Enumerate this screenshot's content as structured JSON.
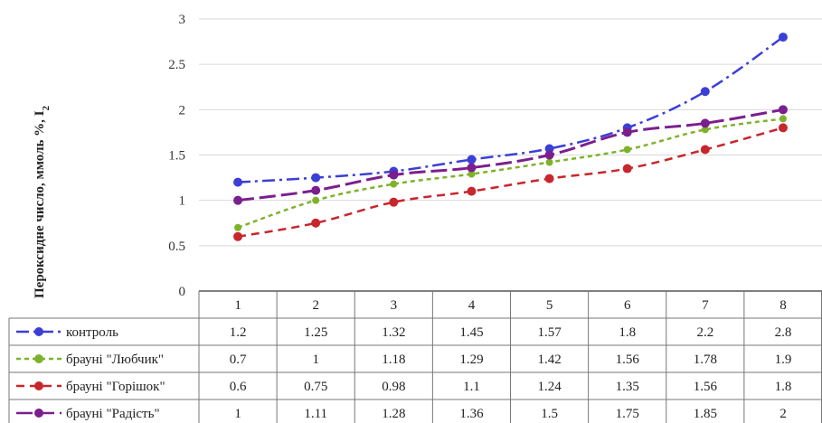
{
  "chart_data": {
    "type": "line",
    "ylabel": "Пероксидне число, ммоль %, I",
    "ylabel_sub": "2",
    "ylim": [
      0,
      3
    ],
    "yticks": [
      "0",
      "0.5",
      "1",
      "1.5",
      "2",
      "2.5",
      "3"
    ],
    "categories": [
      "1",
      "2",
      "3",
      "4",
      "5",
      "6",
      "7",
      "8"
    ],
    "grid": true,
    "legend": "data table below x-axis",
    "series": [
      {
        "name": "контроль",
        "color": "#3b3fd6",
        "dash": "dash-dot",
        "values": [
          1.2,
          1.25,
          1.32,
          1.45,
          1.57,
          1.8,
          2.2,
          2.8
        ],
        "labels": [
          "1.2",
          "1.25",
          "1.32",
          "1.45",
          "1.57",
          "1.8",
          "2.2",
          "2.8"
        ]
      },
      {
        "name": "брауні \"Любчик\"",
        "color": "#7fb22b",
        "dash": "dotted",
        "values": [
          0.7,
          1,
          1.18,
          1.29,
          1.42,
          1.56,
          1.78,
          1.9
        ],
        "labels": [
          "0.7",
          "1",
          "1.18",
          "1.29",
          "1.42",
          "1.56",
          "1.78",
          "1.9"
        ]
      },
      {
        "name": "брауні \"Горішок\"",
        "color": "#c8262c",
        "dash": "dashed",
        "values": [
          0.6,
          0.75,
          0.98,
          1.1,
          1.24,
          1.35,
          1.56,
          1.8
        ],
        "labels": [
          "0.6",
          "0.75",
          "0.98",
          "1.1",
          "1.24",
          "1.35",
          "1.56",
          "1.8"
        ]
      },
      {
        "name": "брауні \"Радість\"",
        "color": "#7b1f8e",
        "dash": "long-dash",
        "values": [
          1,
          1.11,
          1.28,
          1.36,
          1.5,
          1.75,
          1.85,
          2
        ],
        "labels": [
          "1",
          "1.11",
          "1.28",
          "1.36",
          "1.5",
          "1.75",
          "1.85",
          "2"
        ]
      }
    ]
  }
}
